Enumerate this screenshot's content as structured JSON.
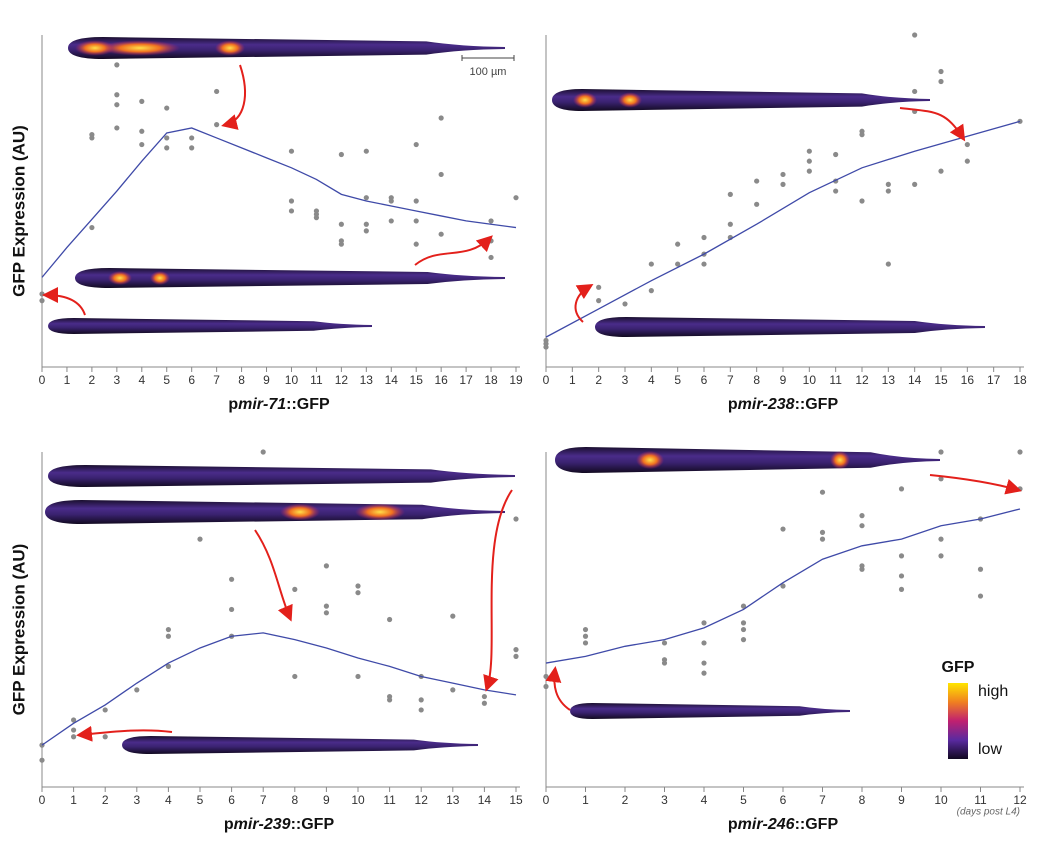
{
  "chart_data": [
    {
      "type": "scatter",
      "ylabel": "GFP Expression (AU)",
      "xlabel": [
        "p",
        "mir-71",
        "::GFP"
      ],
      "xlim": [
        0,
        19
      ],
      "xticks": [
        0,
        1,
        2,
        3,
        4,
        5,
        6,
        7,
        8,
        9,
        10,
        11,
        12,
        13,
        14,
        15,
        16,
        17,
        18,
        19
      ],
      "ylim": [
        0,
        100
      ],
      "points": {
        "color": "#8a8a8a",
        "x": [
          0,
          0,
          2,
          2,
          2,
          3,
          3,
          3,
          3,
          4,
          4,
          4,
          5,
          5,
          5,
          6,
          6,
          7,
          7,
          10,
          10,
          10,
          11,
          11,
          11,
          12,
          12,
          12,
          12,
          13,
          13,
          13,
          13,
          14,
          14,
          14,
          15,
          15,
          15,
          15,
          16,
          16,
          16,
          18,
          18,
          18,
          19
        ],
        "y": [
          22,
          20,
          70,
          69,
          42,
          91,
          82,
          79,
          72,
          80,
          71,
          67,
          78,
          69,
          66,
          69,
          66,
          83,
          73,
          65,
          50,
          47,
          47,
          46,
          45,
          64,
          43,
          38,
          37,
          65,
          51,
          43,
          41,
          51,
          50,
          44,
          67,
          50,
          44,
          37,
          75,
          58,
          40,
          44,
          38,
          33,
          51
        ]
      },
      "trend": {
        "color": "#3f4aa8",
        "x": [
          0,
          1,
          2,
          3,
          4,
          5,
          6,
          7,
          8,
          9,
          10,
          11,
          12,
          13,
          14,
          15,
          16,
          17,
          18,
          19
        ],
        "y": [
          27,
          36,
          44.5,
          53,
          62,
          70.5,
          72,
          69,
          66,
          63,
          60,
          56.5,
          52,
          50,
          48.5,
          47,
          45.5,
          44,
          43,
          42
        ]
      },
      "scale_bar": "100 µm"
    },
    {
      "type": "scatter",
      "xlabel": [
        "p",
        "mir-238",
        "::GFP"
      ],
      "xlim": [
        0,
        18
      ],
      "xticks": [
        0,
        1,
        2,
        3,
        4,
        5,
        6,
        7,
        8,
        9,
        10,
        11,
        12,
        13,
        14,
        15,
        16,
        17,
        18
      ],
      "ylim": [
        0,
        100
      ],
      "points": {
        "color": "#8a8a8a",
        "x": [
          0,
          0,
          0,
          2,
          2,
          3,
          4,
          4,
          5,
          5,
          6,
          6,
          6,
          7,
          7,
          7,
          8,
          8,
          9,
          9,
          10,
          10,
          10,
          11,
          11,
          11,
          12,
          12,
          12,
          13,
          13,
          13,
          14,
          14,
          14,
          14,
          15,
          15,
          15,
          16,
          16,
          18
        ],
        "y": [
          8,
          7,
          6,
          24,
          20,
          19,
          31,
          23,
          37,
          31,
          39,
          34,
          31,
          52,
          43,
          39,
          56,
          49,
          58,
          55,
          65,
          62,
          59,
          64,
          56,
          53,
          71,
          70,
          50,
          55,
          53,
          31,
          100,
          83,
          77,
          55,
          89,
          86,
          59,
          67,
          62,
          74
        ]
      },
      "trend": {
        "color": "#3f4aa8",
        "x": [
          0,
          2,
          4,
          6,
          8,
          10,
          12,
          14,
          16,
          18
        ],
        "y": [
          9,
          17.5,
          26,
          34,
          43,
          52.5,
          60,
          65,
          69.5,
          74
        ]
      }
    },
    {
      "type": "scatter",
      "ylabel": "GFP Expression (AU)",
      "xlabel": [
        "p",
        "mir-239",
        "::GFP"
      ],
      "xlim": [
        0,
        15
      ],
      "xticks": [
        0,
        1,
        2,
        3,
        4,
        5,
        6,
        7,
        8,
        9,
        10,
        11,
        12,
        13,
        14,
        15
      ],
      "ylim": [
        0,
        100
      ],
      "points": {
        "color": "#8a8a8a",
        "x": [
          0,
          0,
          1,
          1,
          1,
          2,
          2,
          3,
          4,
          4,
          4,
          5,
          6,
          6,
          6,
          7,
          8,
          8,
          9,
          9,
          9,
          10,
          10,
          10,
          11,
          11,
          11,
          12,
          12,
          12,
          13,
          13,
          14,
          14,
          15,
          15,
          15
        ],
        "y": [
          12.5,
          8,
          20,
          17,
          15,
          23,
          15,
          29,
          47,
          45,
          36,
          74,
          62,
          53,
          45,
          100,
          59,
          33,
          66,
          54,
          52,
          60,
          58,
          33,
          50,
          27,
          26,
          33,
          26,
          23,
          51,
          29,
          27,
          25,
          80,
          41,
          39
        ]
      },
      "trend": {
        "color": "#3f4aa8",
        "x": [
          0,
          1,
          2,
          3,
          4,
          5,
          6,
          7,
          8,
          9,
          10,
          11,
          12,
          13,
          14,
          15
        ],
        "y": [
          12.5,
          19,
          24.5,
          31,
          37,
          41.5,
          45,
          46,
          44,
          41.5,
          38.5,
          36,
          33,
          31,
          29,
          27.5
        ]
      }
    },
    {
      "type": "scatter",
      "xlabel": [
        "p",
        "mir-246",
        "::GFP"
      ],
      "xlim": [
        0,
        12
      ],
      "xticks": [
        0,
        1,
        2,
        3,
        4,
        5,
        6,
        7,
        8,
        9,
        10,
        11,
        12
      ],
      "ylim": [
        0,
        100
      ],
      "points": {
        "color": "#8a8a8a",
        "x": [
          0,
          0,
          1,
          1,
          1,
          3,
          3,
          3,
          4,
          4,
          4,
          4,
          5,
          5,
          5,
          5,
          6,
          6,
          7,
          7,
          7,
          8,
          8,
          8,
          8,
          9,
          9,
          9,
          9,
          10,
          10,
          10,
          10,
          11,
          11,
          11,
          12,
          12
        ],
        "y": [
          33,
          30,
          47,
          45,
          43,
          43,
          38,
          37,
          49,
          43,
          37,
          34,
          54,
          49,
          47,
          44,
          77,
          60,
          88,
          76,
          74,
          81,
          78,
          66,
          65,
          89,
          69,
          63,
          59,
          100,
          92,
          74,
          69,
          80,
          65,
          57,
          100,
          89
        ]
      },
      "trend": {
        "color": "#3f4aa8",
        "x": [
          0,
          1,
          2,
          3,
          4,
          5,
          6,
          7,
          8,
          9,
          10,
          11,
          12
        ],
        "y": [
          37,
          39,
          42,
          44,
          47.5,
          53,
          61,
          68,
          72,
          74,
          78,
          80,
          83
        ]
      },
      "x_note": "(days post L4)",
      "colorbar": {
        "title": "GFP",
        "high": "high",
        "low": "low"
      }
    }
  ]
}
